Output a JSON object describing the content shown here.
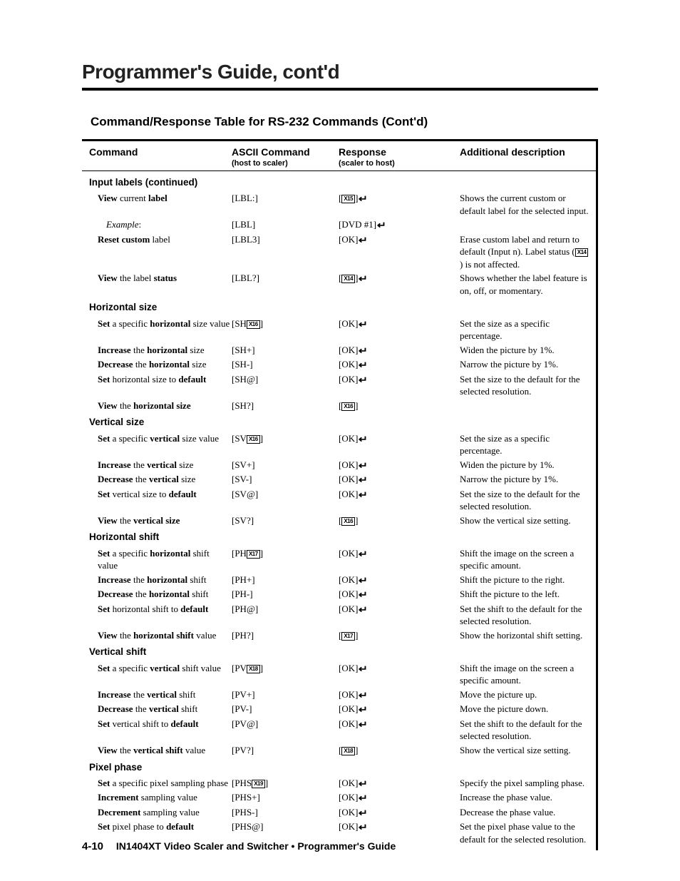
{
  "title": "Programmer's Guide, cont'd",
  "subtitle": "Command/Response Table for RS-232 Commands (Cont'd)",
  "header": {
    "c1": "Command",
    "c2": "ASCII Command",
    "c2sub": "(host to scaler)",
    "c3": "Response",
    "c3sub": "(scaler to host)",
    "c4": "Additional description"
  },
  "sections": [
    {
      "title": "Input labels (continued)",
      "rows": [
        {
          "c1": "<b>View</b> current <b>label</b>",
          "c2": "[LBL:]",
          "c3": "[<span class='xbox'>X15</span>]<span class='larr'>&#8629;</span>",
          "c4": "Shows the current custom or default label for the selected input."
        },
        {
          "c1": "<span style='padding-left:12px' class='ital'>Example</span>:",
          "c2": "[LBL]",
          "c3": "[DVD #1]<span class='larr'>&#8629;</span>",
          "c4": ""
        },
        {
          "c1": "<b>Reset custom</b> label",
          "c2": "[LBL3]",
          "c3": "[OK]<span class='larr'>&#8629;</span>",
          "c4": "Erase custom label and return to default (Input n). Label status (<span class='xbox'>X14</span>) is not affected."
        },
        {
          "c1": "<b>View</b> the label <b>status</b>",
          "c2": "[LBL?]",
          "c3": "[<span class='xbox'>X14</span>]<span class='larr'>&#8629;</span>",
          "c4": "Shows whether the label feature is on, off, or momentary."
        }
      ]
    },
    {
      "title": "Horizontal size",
      "rows": [
        {
          "c1": "<b>Set</b> a specific <b>horizontal</b> size value",
          "c2": "[SH<span class='xbox'>X16</span>]",
          "c3": "[OK]<span class='larr'>&#8629;</span>",
          "c4": "Set the size as a specific percentage."
        },
        {
          "c1": "<b>Increase</b> the <b>horizontal</b> size",
          "c2": "[SH+]",
          "c3": "[OK]<span class='larr'>&#8629;</span>",
          "c4": "Widen the picture by 1%."
        },
        {
          "c1": "<b>Decrease</b> the <b>horizontal</b> size",
          "c2": "[SH-]",
          "c3": "[OK]<span class='larr'>&#8629;</span>",
          "c4": "Narrow the picture by 1%."
        },
        {
          "c1": "<b>Set</b> horizontal size to <b>default</b>",
          "c2": "[SH@]",
          "c3": "[OK]<span class='larr'>&#8629;</span>",
          "c4": "Set the size to the default for the selected resolution."
        },
        {
          "c1": "<b>View</b> the <b>horizontal size</b>",
          "c2": "[SH?]",
          "c3": "[<span class='xbox'>X16</span>]",
          "c4": ""
        }
      ]
    },
    {
      "title": "Vertical size",
      "rows": [
        {
          "c1": "<b>Set</b> a specific <b>vertical</b> size value",
          "c2": "[SV<span class='xbox'>X16</span>]",
          "c3": "[OK]<span class='larr'>&#8629;</span>",
          "c4": "Set the size as a specific percentage."
        },
        {
          "c1": "<b>Increase</b> the <b>vertical</b> size",
          "c2": "[SV+]",
          "c3": "[OK]<span class='larr'>&#8629;</span>",
          "c4": "Widen the picture by 1%."
        },
        {
          "c1": "<b>Decrease</b> the <b>vertical</b> size",
          "c2": "[SV-]",
          "c3": "[OK]<span class='larr'>&#8629;</span>",
          "c4": "Narrow the picture by 1%."
        },
        {
          "c1": "<b>Set</b> vertical size to <b>default</b>",
          "c2": "[SV@]",
          "c3": "[OK]<span class='larr'>&#8629;</span>",
          "c4": "Set the size to the default for the selected resolution."
        },
        {
          "c1": "<b>View</b> the <b>vertical size</b>",
          "c2": "[SV?]",
          "c3": "[<span class='xbox'>X16</span>]",
          "c4": "Show the vertical size setting."
        }
      ]
    },
    {
      "title": "Horizontal shift",
      "rows": [
        {
          "c1": "<b>Set</b> a specific <b>horizontal</b> shift value",
          "c2": "[PH<span class='xbox'>X17</span>]",
          "c3": "[OK]<span class='larr'>&#8629;</span>",
          "c4": "Shift the image on the screen a specific amount."
        },
        {
          "c1": "<b>Increase</b> the <b>horizontal</b> shift",
          "c2": "[PH+]",
          "c3": "[OK]<span class='larr'>&#8629;</span>",
          "c4": "Shift the picture to the right."
        },
        {
          "c1": "<b>Decrease</b> the <b>horizontal</b> shift",
          "c2": "[PH-]",
          "c3": "[OK]<span class='larr'>&#8629;</span>",
          "c4": "Shift the picture to the left."
        },
        {
          "c1": "<b>Set</b> horizontal shift to <b>default</b>",
          "c2": "[PH@]",
          "c3": "[OK]<span class='larr'>&#8629;</span>",
          "c4": "Set the shift to the default for the selected resolution."
        },
        {
          "c1": "<b>View</b> the <b>horizontal shift</b> value",
          "c2": "[PH?]",
          "c3": "[<span class='xbox'>X17</span>]",
          "c4": "Show the horizontal shift setting."
        }
      ]
    },
    {
      "title": "Vertical shift",
      "rows": [
        {
          "c1": "<b>Set</b> a specific <b>vertical</b> shift value",
          "c2": "[PV<span class='xbox'>X18</span>]",
          "c3": "[OK]<span class='larr'>&#8629;</span>",
          "c4": "Shift the image on the screen a specific amount."
        },
        {
          "c1": "<b>Increase</b> the <b>vertical</b> shift",
          "c2": "[PV+]",
          "c3": "[OK]<span class='larr'>&#8629;</span>",
          "c4": "Move the picture up."
        },
        {
          "c1": "<b>Decrease</b> the <b>vertical</b> shift",
          "c2": "[PV-]",
          "c3": "[OK]<span class='larr'>&#8629;</span>",
          "c4": "Move the picture down."
        },
        {
          "c1": "<b>Set</b> vertical shift to <b>default</b>",
          "c2": "[PV@]",
          "c3": "[OK]<span class='larr'>&#8629;</span>",
          "c4": "Set the shift to the default for the selected resolution."
        },
        {
          "c1": "<b>View</b> the <b>vertical shift</b> value",
          "c2": "[PV?]",
          "c3": "[<span class='xbox'>X18</span>]",
          "c4": "Show the vertical size setting."
        }
      ]
    },
    {
      "title": "Pixel phase",
      "rows": [
        {
          "c1": "<b>Set</b> a specific pixel sampling phase",
          "c2": "[PHS<span class='xbox'>X19</span>]",
          "c3": "[OK]<span class='larr'>&#8629;</span>",
          "c4": "Specify the pixel sampling phase."
        },
        {
          "c1": "<b>Increment</b> sampling value",
          "c2": "[PHS+]",
          "c3": "[OK]<span class='larr'>&#8629;</span>",
          "c4": "Increase the phase value."
        },
        {
          "c1": "<b>Decrement</b> sampling value",
          "c2": "[PHS-]",
          "c3": "[OK]<span class='larr'>&#8629;</span>",
          "c4": "Decrease the phase value."
        },
        {
          "c1": "<b>Set</b> pixel phase to <b>default</b>",
          "c2": "[PHS@]",
          "c3": "[OK]<span class='larr'>&#8629;</span>",
          "c4": "Set the pixel phase value to the default for the selected resolution."
        }
      ]
    }
  ],
  "footer": {
    "page": "4-10",
    "text": "IN1404XT Video Scaler and Switcher • Programmer's Guide"
  }
}
